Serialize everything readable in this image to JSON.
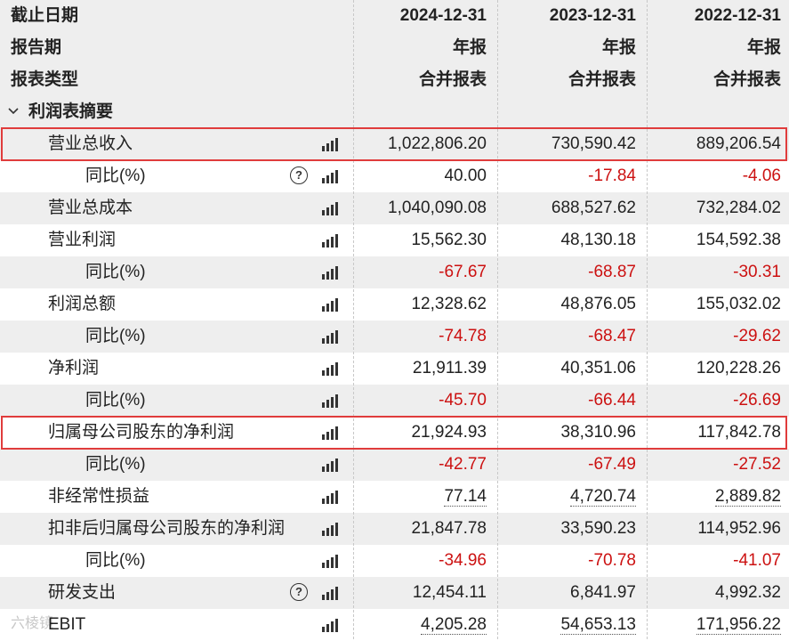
{
  "header": {
    "rows": [
      {
        "label": "截止日期",
        "cols": [
          "2024-12-31",
          "2023-12-31",
          "2022-12-31"
        ]
      },
      {
        "label": "报告期",
        "cols": [
          "年报",
          "年报",
          "年报"
        ]
      },
      {
        "label": "报表类型",
        "cols": [
          "合并报表",
          "合并报表",
          "合并报表"
        ]
      }
    ]
  },
  "section": {
    "title": "利润表摘要",
    "chevron": "chevron-down-icon"
  },
  "rows": [
    {
      "label": "营业总收入",
      "values": [
        "1,022,806.20",
        "730,590.42",
        "889,206.54"
      ]
    },
    {
      "label": "同比(%)",
      "values": [
        "40.00",
        "-17.84",
        "-4.06"
      ]
    },
    {
      "label": "营业总成本",
      "values": [
        "1,040,090.08",
        "688,527.62",
        "732,284.02"
      ]
    },
    {
      "label": "营业利润",
      "values": [
        "15,562.30",
        "48,130.18",
        "154,592.38"
      ]
    },
    {
      "label": "同比(%)",
      "values": [
        "-67.67",
        "-68.87",
        "-30.31"
      ]
    },
    {
      "label": "利润总额",
      "values": [
        "12,328.62",
        "48,876.05",
        "155,032.02"
      ]
    },
    {
      "label": "同比(%)",
      "values": [
        "-74.78",
        "-68.47",
        "-29.62"
      ]
    },
    {
      "label": "净利润",
      "values": [
        "21,911.39",
        "40,351.06",
        "120,228.26"
      ]
    },
    {
      "label": "同比(%)",
      "values": [
        "-45.70",
        "-66.44",
        "-26.69"
      ]
    },
    {
      "label": "归属母公司股东的净利润",
      "values": [
        "21,924.93",
        "38,310.96",
        "117,842.78"
      ]
    },
    {
      "label": "同比(%)",
      "values": [
        "-42.77",
        "-67.49",
        "-27.52"
      ]
    },
    {
      "label": "非经常性损益",
      "values": [
        "77.14",
        "4,720.74",
        "2,889.82"
      ]
    },
    {
      "label": "扣非后归属母公司股东的净利润",
      "values": [
        "21,847.78",
        "33,590.23",
        "114,952.96"
      ]
    },
    {
      "label": "同比(%)",
      "values": [
        "-34.96",
        "-70.78",
        "-41.07"
      ]
    },
    {
      "label": "研发支出",
      "values": [
        "12,454.11",
        "6,841.97",
        "4,992.32"
      ]
    },
    {
      "label": "EBIT",
      "values": [
        "4,205.28",
        "54,653.13",
        "171,956.22"
      ]
    }
  ],
  "help_glyph": "?",
  "watermark": "六棱镜",
  "colors": {
    "negative": "#cc1111",
    "highlight_border": "#e03c3c",
    "row_alt": "#eeeeee"
  }
}
